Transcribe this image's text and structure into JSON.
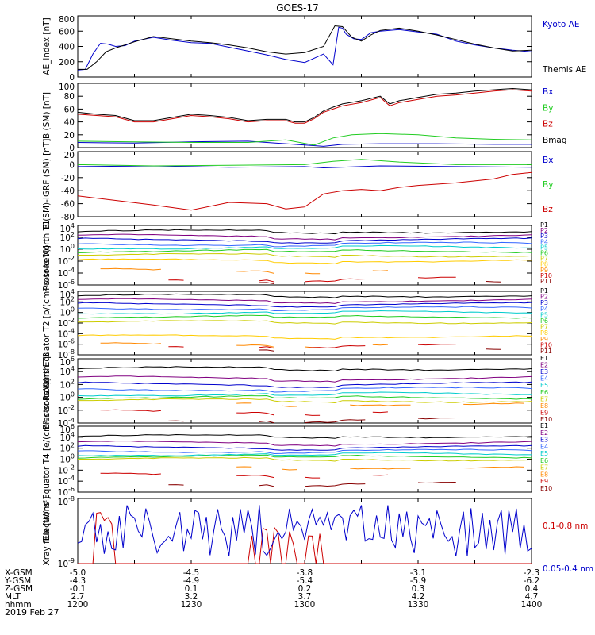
{
  "title": "GOES-17",
  "date_label": "2019 Feb 27",
  "chart_data": [
    {
      "type": "line",
      "ylabel": "AE_index [nT]",
      "yticks": [
        "0",
        "200",
        "400",
        "600",
        "800"
      ],
      "ylim": [
        0,
        800
      ],
      "scale": "linear",
      "series": [
        {
          "name": "Kyoto AE",
          "color": "#0000cc",
          "x": [
            0,
            4,
            8,
            12,
            16,
            20,
            25,
            30,
            40,
            50,
            60,
            70,
            80,
            90,
            100,
            110,
            120,
            130,
            135,
            138,
            140,
            142,
            146,
            150,
            155,
            160,
            170,
            180,
            190,
            200,
            210,
            220,
            230,
            240
          ],
          "y": [
            90,
            100,
            300,
            440,
            430,
            400,
            410,
            470,
            520,
            480,
            450,
            440,
            390,
            340,
            290,
            230,
            190,
            300,
            160,
            650,
            640,
            560,
            500,
            490,
            580,
            600,
            620,
            590,
            560,
            470,
            420,
            380,
            350,
            330
          ]
        },
        {
          "name": "Themis AE",
          "color": "#000000",
          "x": [
            0,
            5,
            10,
            15,
            20,
            25,
            30,
            40,
            50,
            60,
            70,
            80,
            90,
            100,
            110,
            120,
            130,
            136,
            140,
            145,
            150,
            155,
            160,
            170,
            180,
            190,
            200,
            210,
            220,
            230,
            240
          ],
          "y": [
            100,
            100,
            200,
            330,
            380,
            420,
            460,
            530,
            500,
            470,
            450,
            420,
            380,
            330,
            300,
            320,
            400,
            670,
            660,
            520,
            470,
            550,
            610,
            640,
            600,
            550,
            490,
            430,
            380,
            340,
            350
          ]
        }
      ]
    },
    {
      "type": "line",
      "ylabel": "B (SM) [nT]",
      "yticks": [
        "0",
        "20",
        "40",
        "60",
        "80",
        "100"
      ],
      "ylim": [
        0,
        100
      ],
      "scale": "linear",
      "series": [
        {
          "name": "Bx",
          "color": "#0000cc",
          "x": [
            0,
            30,
            60,
            90,
            110,
            130,
            140,
            160,
            190,
            220,
            240
          ],
          "y": [
            8,
            7,
            9,
            10,
            6,
            2,
            5,
            6,
            6,
            5,
            5
          ]
        },
        {
          "name": "By",
          "color": "#22cc22",
          "x": [
            0,
            30,
            60,
            90,
            110,
            125,
            135,
            145,
            160,
            180,
            200,
            220,
            240
          ],
          "y": [
            10,
            9,
            8,
            8,
            12,
            4,
            15,
            20,
            22,
            20,
            15,
            13,
            12
          ]
        },
        {
          "name": "Bz",
          "color": "#cc0000",
          "x": [
            0,
            10,
            20,
            30,
            40,
            50,
            60,
            70,
            80,
            90,
            100,
            110,
            115,
            120,
            125,
            130,
            135,
            140,
            150,
            160,
            165,
            170,
            180,
            190,
            200,
            210,
            220,
            230,
            240
          ],
          "y": [
            52,
            50,
            48,
            40,
            40,
            45,
            50,
            48,
            45,
            40,
            42,
            42,
            38,
            38,
            45,
            55,
            60,
            65,
            70,
            78,
            65,
            70,
            75,
            80,
            82,
            85,
            88,
            90,
            88
          ]
        },
        {
          "name": "Bmag",
          "color": "#000000",
          "x": [
            0,
            10,
            20,
            30,
            40,
            50,
            60,
            70,
            80,
            90,
            100,
            110,
            115,
            120,
            125,
            130,
            135,
            140,
            150,
            160,
            165,
            170,
            180,
            190,
            200,
            210,
            220,
            230,
            240
          ],
          "y": [
            55,
            52,
            50,
            42,
            42,
            47,
            52,
            50,
            47,
            42,
            44,
            44,
            40,
            40,
            47,
            57,
            63,
            68,
            73,
            80,
            68,
            73,
            78,
            83,
            85,
            88,
            90,
            92,
            90
          ]
        }
      ]
    },
    {
      "type": "line",
      "ylabel": "B (SM)-IGRF (SM) [nT]",
      "yticks": [
        "-80",
        "-60",
        "-40",
        "-20",
        "0",
        "20"
      ],
      "ylim": [
        -80,
        20
      ],
      "scale": "linear",
      "series": [
        {
          "name": "Bx",
          "color": "#0000cc",
          "x": [
            0,
            40,
            80,
            120,
            130,
            160,
            200,
            240
          ],
          "y": [
            -3,
            -2,
            -4,
            -3,
            -5,
            -2,
            -3,
            -4
          ]
        },
        {
          "name": "By",
          "color": "#22cc22",
          "x": [
            0,
            40,
            80,
            120,
            135,
            150,
            170,
            200,
            240
          ],
          "y": [
            0,
            -2,
            -1,
            0,
            5,
            8,
            4,
            0,
            0
          ]
        },
        {
          "name": "Bz",
          "color": "#cc0000",
          "x": [
            0,
            20,
            40,
            60,
            80,
            100,
            110,
            120,
            130,
            140,
            150,
            160,
            170,
            180,
            190,
            200,
            210,
            220,
            230,
            240
          ],
          "y": [
            -48,
            -55,
            -62,
            -70,
            -58,
            -60,
            -68,
            -65,
            -45,
            -40,
            -38,
            -40,
            -35,
            -32,
            -30,
            -28,
            -25,
            -22,
            -15,
            -12
          ]
        }
      ]
    },
    {
      "type": "line",
      "ylabel": "Protons North T1",
      "yticks": [
        "10^4",
        "10^2",
        "10^0",
        "10^-2",
        "10^-4",
        "10^-6"
      ],
      "ylim": [
        -6,
        4
      ],
      "scale": "log",
      "series": [
        {
          "name": "P1",
          "color": "#000000",
          "level": 3.0
        },
        {
          "name": "P2",
          "color": "#800080",
          "level": 2.2
        },
        {
          "name": "P3",
          "color": "#0000cc",
          "level": 1.6
        },
        {
          "name": "P4",
          "color": "#3366ff",
          "level": 0.9
        },
        {
          "name": "P5",
          "color": "#00cccc",
          "level": 0.3
        },
        {
          "name": "P6",
          "color": "#22cc22",
          "level": -0.3
        },
        {
          "name": "P7",
          "color": "#cccc00",
          "level": -1.0
        },
        {
          "name": "P8",
          "color": "#ffcc00",
          "level": -1.9
        },
        {
          "name": "P9",
          "color": "#ff8800",
          "level": -3.5
        },
        {
          "name": "P10",
          "color": "#cc0000",
          "level": -5.0
        },
        {
          "name": "P11",
          "color": "#880000",
          "level": -5.5
        }
      ],
      "legend": [
        "P1",
        "P2",
        "P3",
        "P4",
        "P5",
        "P6",
        "P7",
        "P8",
        "P9",
        "P10",
        "P11"
      ]
    },
    {
      "type": "line",
      "ylabel": "Protons Equator T2 [p/(cm²-s-sr-keV)]",
      "yticks": [
        "10^4",
        "10^2",
        "10^0",
        "10^-2",
        "10^-4",
        "10^-6",
        "10^-8"
      ],
      "ylim": [
        -8,
        4
      ],
      "scale": "log",
      "series": [
        {
          "name": "P1",
          "color": "#000000",
          "level": 3.2
        },
        {
          "name": "P2",
          "color": "#800080",
          "level": 2.3
        },
        {
          "name": "P3",
          "color": "#0000cc",
          "level": 1.6
        },
        {
          "name": "P4",
          "color": "#3366ff",
          "level": 0.8
        },
        {
          "name": "P5",
          "color": "#00cccc",
          "level": 0.0
        },
        {
          "name": "P6",
          "color": "#22cc22",
          "level": -0.8
        },
        {
          "name": "P7",
          "color": "#cccc00",
          "level": -1.8
        },
        {
          "name": "P8",
          "color": "#ffcc00",
          "level": -4.5
        },
        {
          "name": "P9",
          "color": "#ff8800",
          "level": -6.0
        },
        {
          "name": "P10",
          "color": "#cc0000",
          "level": -6.3
        },
        {
          "name": "P11",
          "color": "#880000",
          "level": -7.0
        }
      ],
      "legend": [
        "P1",
        "P2",
        "P3",
        "P4",
        "P5",
        "P6",
        "P7",
        "P8",
        "P9",
        "P10",
        "P11"
      ]
    },
    {
      "type": "line",
      "ylabel": "Electrons North T3",
      "yticks": [
        "10^6",
        "10^4",
        "10^2",
        "10^0",
        "10^-2",
        "10^-4"
      ],
      "ylim": [
        -4,
        6
      ],
      "scale": "log",
      "series": [
        {
          "name": "E1",
          "color": "#000000",
          "level": 4.5
        },
        {
          "name": "E2",
          "color": "#800080",
          "level": 3.0
        },
        {
          "name": "E3",
          "color": "#0000cc",
          "level": 2.1
        },
        {
          "name": "E4",
          "color": "#3366ff",
          "level": 1.3
        },
        {
          "name": "E5",
          "color": "#00cccc",
          "level": 0.5
        },
        {
          "name": "E6",
          "color": "#22cc22",
          "level": 0.0
        },
        {
          "name": "E7",
          "color": "#cccc00",
          "level": -0.5
        },
        {
          "name": "E8",
          "color": "#ff8800",
          "level": -1.0
        },
        {
          "name": "E9",
          "color": "#cc0000",
          "level": -2.2
        },
        {
          "name": "E10",
          "color": "#880000",
          "level": -3.5
        }
      ],
      "legend": [
        "E1",
        "E2",
        "E3",
        "E4",
        "E5",
        "E6",
        "E7",
        "E8",
        "E9",
        "E10"
      ]
    },
    {
      "type": "line",
      "ylabel": "Electrons Equator T4 [e/(cm²-s-sr-keV)]",
      "yticks": [
        "10^6",
        "10^4",
        "10^2",
        "10^0",
        "10^-2",
        "10^-4",
        "10^-6"
      ],
      "ylim": [
        -6,
        6
      ],
      "scale": "log",
      "series": [
        {
          "name": "E1",
          "color": "#000000",
          "level": 4.2
        },
        {
          "name": "E2",
          "color": "#800080",
          "level": 3.0
        },
        {
          "name": "E3",
          "color": "#0000cc",
          "level": 2.2
        },
        {
          "name": "E4",
          "color": "#3366ff",
          "level": 1.5
        },
        {
          "name": "E5",
          "color": "#00cccc",
          "level": 0.9
        },
        {
          "name": "E6",
          "color": "#22cc22",
          "level": 0.5
        },
        {
          "name": "E7",
          "color": "#cccc00",
          "level": 0.0
        },
        {
          "name": "E8",
          "color": "#ff8800",
          "level": -1.5
        },
        {
          "name": "E9",
          "color": "#cc0000",
          "level": -2.8
        },
        {
          "name": "E10",
          "color": "#880000",
          "level": -4.5
        }
      ],
      "legend": [
        "E1",
        "E2",
        "E3",
        "E4",
        "E5",
        "E6",
        "E7",
        "E8",
        "E9",
        "E10"
      ]
    },
    {
      "type": "line",
      "ylabel": "Xray flux [W/m²]",
      "yticks": [
        "10^-8",
        "10^-9"
      ],
      "ylim": [
        -9,
        -8
      ],
      "scale": "log",
      "series": [
        {
          "name": "0.1-0.8 nm",
          "color": "#cc0000"
        },
        {
          "name": "0.05-0.4 nm",
          "color": "#0000cc"
        }
      ]
    }
  ],
  "x_axis": {
    "row_labels": [
      "X-GSM",
      "Y-GSM",
      "Z-GSM",
      "MLT",
      "hhmm"
    ],
    "columns": [
      {
        "X-GSM": "-5.0",
        "Y-GSM": "-4.3",
        "Z-GSM": "-0.1",
        "MLT": "2.7",
        "hhmm": "1200"
      },
      {
        "X-GSM": "-4.5",
        "Y-GSM": "-4.9",
        "Z-GSM": "0.1",
        "MLT": "3.2",
        "hhmm": "1230"
      },
      {
        "X-GSM": "-3.8",
        "Y-GSM": "-5.4",
        "Z-GSM": "0.2",
        "MLT": "3.7",
        "hhmm": "1300"
      },
      {
        "X-GSM": "-3.1",
        "Y-GSM": "-5.9",
        "Z-GSM": "0.3",
        "MLT": "4.2",
        "hhmm": "1330"
      },
      {
        "X-GSM": "-2.3",
        "Y-GSM": "-6.2",
        "Z-GSM": "0.4",
        "MLT": "4.7",
        "hhmm": "1400"
      }
    ]
  }
}
